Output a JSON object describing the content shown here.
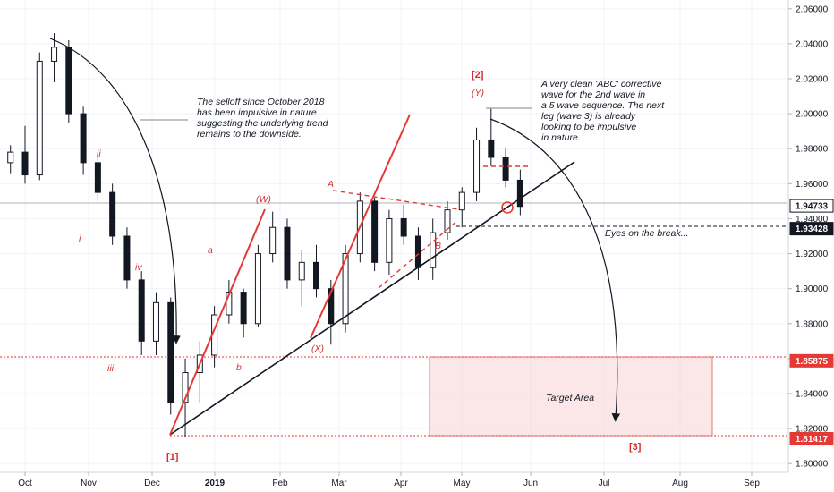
{
  "chart_data": {
    "type": "candlestick",
    "x_tick_labels": [
      "Oct",
      "Nov",
      "Dec",
      "2019",
      "Feb",
      "Mar",
      "Apr",
      "May",
      "Jun",
      "Jul",
      "Aug",
      "Sep"
    ],
    "y_tick_labels": [
      "1.80000",
      "1.82000",
      "1.84000",
      "1.86000",
      "1.88000",
      "1.90000",
      "1.92000",
      "1.94000",
      "1.96000",
      "1.98000",
      "2.00000",
      "2.02000",
      "2.04000",
      "2.06000"
    ],
    "ylim": [
      1.795,
      2.065
    ],
    "price_badges": [
      {
        "value": "1.94733",
        "style": "last"
      },
      {
        "value": "1.93428",
        "style": "dark"
      },
      {
        "value": "1.85875",
        "style": "red"
      },
      {
        "value": "1.81417",
        "style": "red"
      }
    ],
    "annotations": {
      "left_note": [
        "The selloff since October 2018",
        "has been impulsive in nature",
        "suggesting the underlying trend",
        "remains to the downside."
      ],
      "right_note": [
        "A very clean 'ABC' corrective",
        "wave for the 2nd wave in",
        "a 5 wave sequence.  The next",
        "leg (wave 3) is already",
        "looking to be impulsive",
        "in nature."
      ],
      "break_note": "Eyes on the break...",
      "target_label": "Target Area"
    },
    "wave_labels": {
      "w1": "[1]",
      "w2": "[2]",
      "w3": "[3]",
      "ii": "ii",
      "i": "i",
      "iv": "iv",
      "iii": "iii",
      "a": "a",
      "b": "b",
      "W": "(W)",
      "X": "(X)",
      "Y": "(Y)",
      "A": "A",
      "B": "B"
    },
    "series": [
      {
        "values": [
          [
            "2018-09-24",
            1.972,
            1.982,
            1.966,
            1.978
          ],
          [
            "2018-10-01",
            1.978,
            1.993,
            1.96,
            1.965
          ],
          [
            "2018-10-08",
            1.965,
            2.035,
            1.962,
            2.03
          ],
          [
            "2018-10-15",
            2.03,
            2.046,
            2.018,
            2.038
          ],
          [
            "2018-10-22",
            2.038,
            2.042,
            1.995,
            2.0
          ],
          [
            "2018-10-29",
            2.0,
            2.004,
            1.965,
            1.972
          ],
          [
            "2018-11-05",
            1.972,
            1.978,
            1.95,
            1.955
          ],
          [
            "2018-11-12",
            1.955,
            1.96,
            1.925,
            1.93
          ],
          [
            "2018-11-19",
            1.93,
            1.935,
            1.9,
            1.905
          ],
          [
            "2018-11-26",
            1.905,
            1.91,
            1.862,
            1.87
          ],
          [
            "2018-12-03",
            1.87,
            1.898,
            1.862,
            1.892
          ],
          [
            "2018-12-10",
            1.892,
            1.895,
            1.828,
            1.835
          ],
          [
            "2018-12-17",
            1.835,
            1.86,
            1.815,
            1.852
          ],
          [
            "2018-12-24",
            1.852,
            1.87,
            1.835,
            1.862
          ],
          [
            "2018-12-31",
            1.862,
            1.89,
            1.855,
            1.885
          ],
          [
            "2019-01-07",
            1.885,
            1.905,
            1.88,
            1.898
          ],
          [
            "2019-01-14",
            1.898,
            1.9,
            1.872,
            1.88
          ],
          [
            "2019-01-21",
            1.88,
            1.925,
            1.878,
            1.92
          ],
          [
            "2019-01-28",
            1.92,
            1.944,
            1.915,
            1.935
          ],
          [
            "2019-02-04",
            1.935,
            1.94,
            1.9,
            1.905
          ],
          [
            "2019-02-11",
            1.905,
            1.922,
            1.89,
            1.915
          ],
          [
            "2019-02-18",
            1.915,
            1.925,
            1.895,
            1.9
          ],
          [
            "2019-02-25",
            1.9,
            1.905,
            1.868,
            1.88
          ],
          [
            "2019-03-04",
            1.88,
            1.925,
            1.875,
            1.92
          ],
          [
            "2019-03-11",
            1.92,
            1.955,
            1.915,
            1.95
          ],
          [
            "2019-03-18",
            1.95,
            1.952,
            1.91,
            1.915
          ],
          [
            "2019-03-25",
            1.915,
            1.945,
            1.908,
            1.94
          ],
          [
            "2019-04-01",
            1.94,
            1.948,
            1.925,
            1.93
          ],
          [
            "2019-04-08",
            1.93,
            1.935,
            1.905,
            1.912
          ],
          [
            "2019-04-15",
            1.912,
            1.94,
            1.905,
            1.932
          ],
          [
            "2019-04-22",
            1.932,
            1.95,
            1.928,
            1.945
          ],
          [
            "2019-04-29",
            1.945,
            1.958,
            1.935,
            1.955
          ],
          [
            "2019-05-06",
            1.955,
            1.992,
            1.95,
            1.985
          ],
          [
            "2019-05-13",
            1.985,
            2.003,
            1.97,
            1.975
          ],
          [
            "2019-05-20",
            1.975,
            1.98,
            1.958,
            1.962
          ],
          [
            "2019-05-27",
            1.962,
            1.968,
            1.942,
            1.947
          ]
        ]
      }
    ]
  }
}
